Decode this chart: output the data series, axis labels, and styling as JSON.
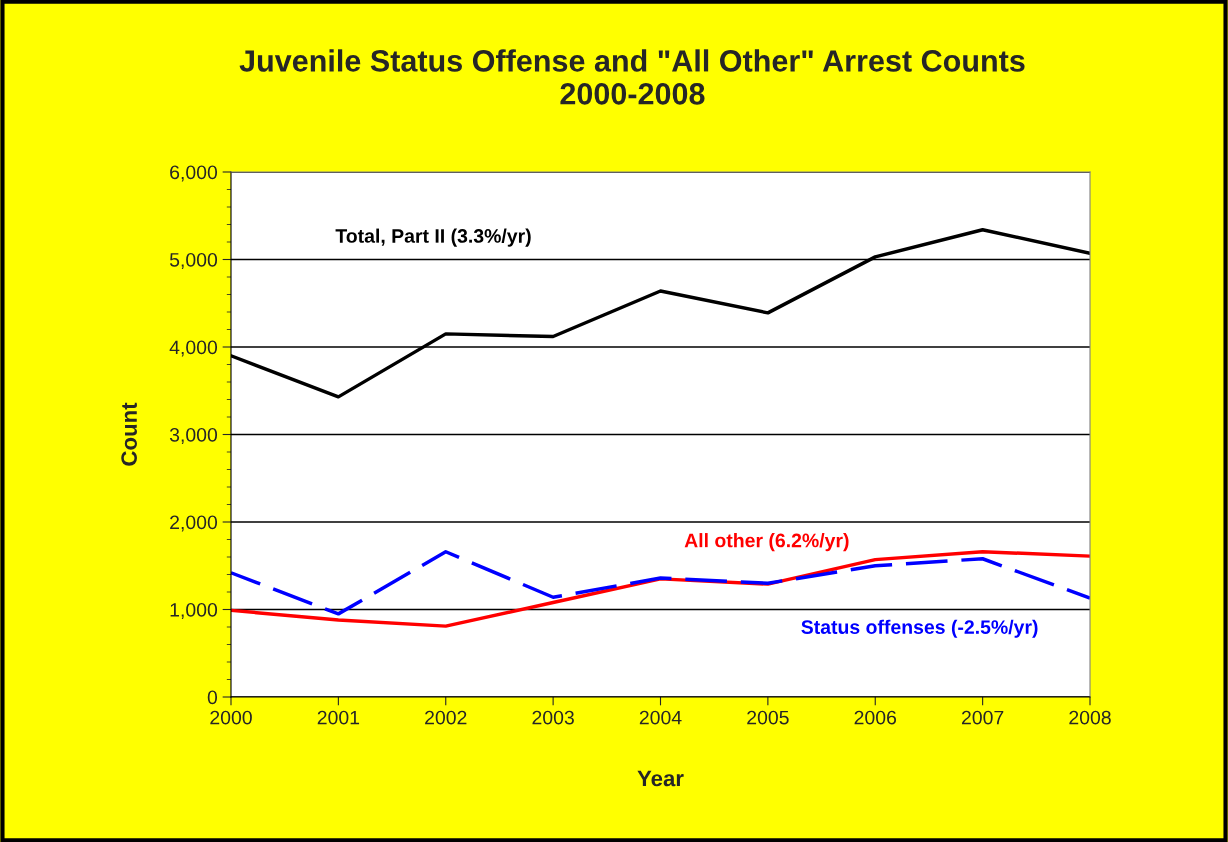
{
  "chart_data": {
    "type": "line",
    "title": "Juvenile Status Offense and \"All Other\" Arrest Counts\n2000-2008",
    "xlabel": "Year",
    "ylabel": "Count",
    "x": [
      2000,
      2001,
      2002,
      2003,
      2004,
      2005,
      2006,
      2007,
      2008
    ],
    "series": [
      {
        "name": "Total, Part II (3.3%/yr)",
        "color": "#000000",
        "line_style": "solid",
        "values": [
          3900,
          3430,
          4150,
          4120,
          4640,
          4390,
          5030,
          5340,
          5070
        ]
      },
      {
        "name": "All other (6.2%/yr)",
        "color": "#ff0000",
        "line_style": "solid",
        "values": [
          990,
          880,
          810,
          1080,
          1350,
          1290,
          1570,
          1660,
          1610
        ]
      },
      {
        "name": "Status offenses (-2.5%/yr)",
        "color": "#0000ff",
        "line_style": "dashed",
        "values": [
          1420,
          950,
          1660,
          1140,
          1360,
          1300,
          1500,
          1580,
          1130
        ]
      }
    ],
    "xlim": [
      2000,
      2008
    ],
    "xticks": [
      2000,
      2001,
      2002,
      2003,
      2004,
      2005,
      2006,
      2007,
      2008
    ],
    "ylim": [
      0,
      6000
    ],
    "yticks": [
      {
        "value": 0,
        "label": "0"
      },
      {
        "value": 1000,
        "label": "1,000"
      },
      {
        "value": 2000,
        "label": "2,000"
      },
      {
        "value": 3000,
        "label": "3,000"
      },
      {
        "value": 4000,
        "label": "4,000"
      },
      {
        "value": 5000,
        "label": "5,000"
      },
      {
        "value": 6000,
        "label": "6,000"
      }
    ],
    "grid": "y",
    "legend": false,
    "marker": "none"
  }
}
